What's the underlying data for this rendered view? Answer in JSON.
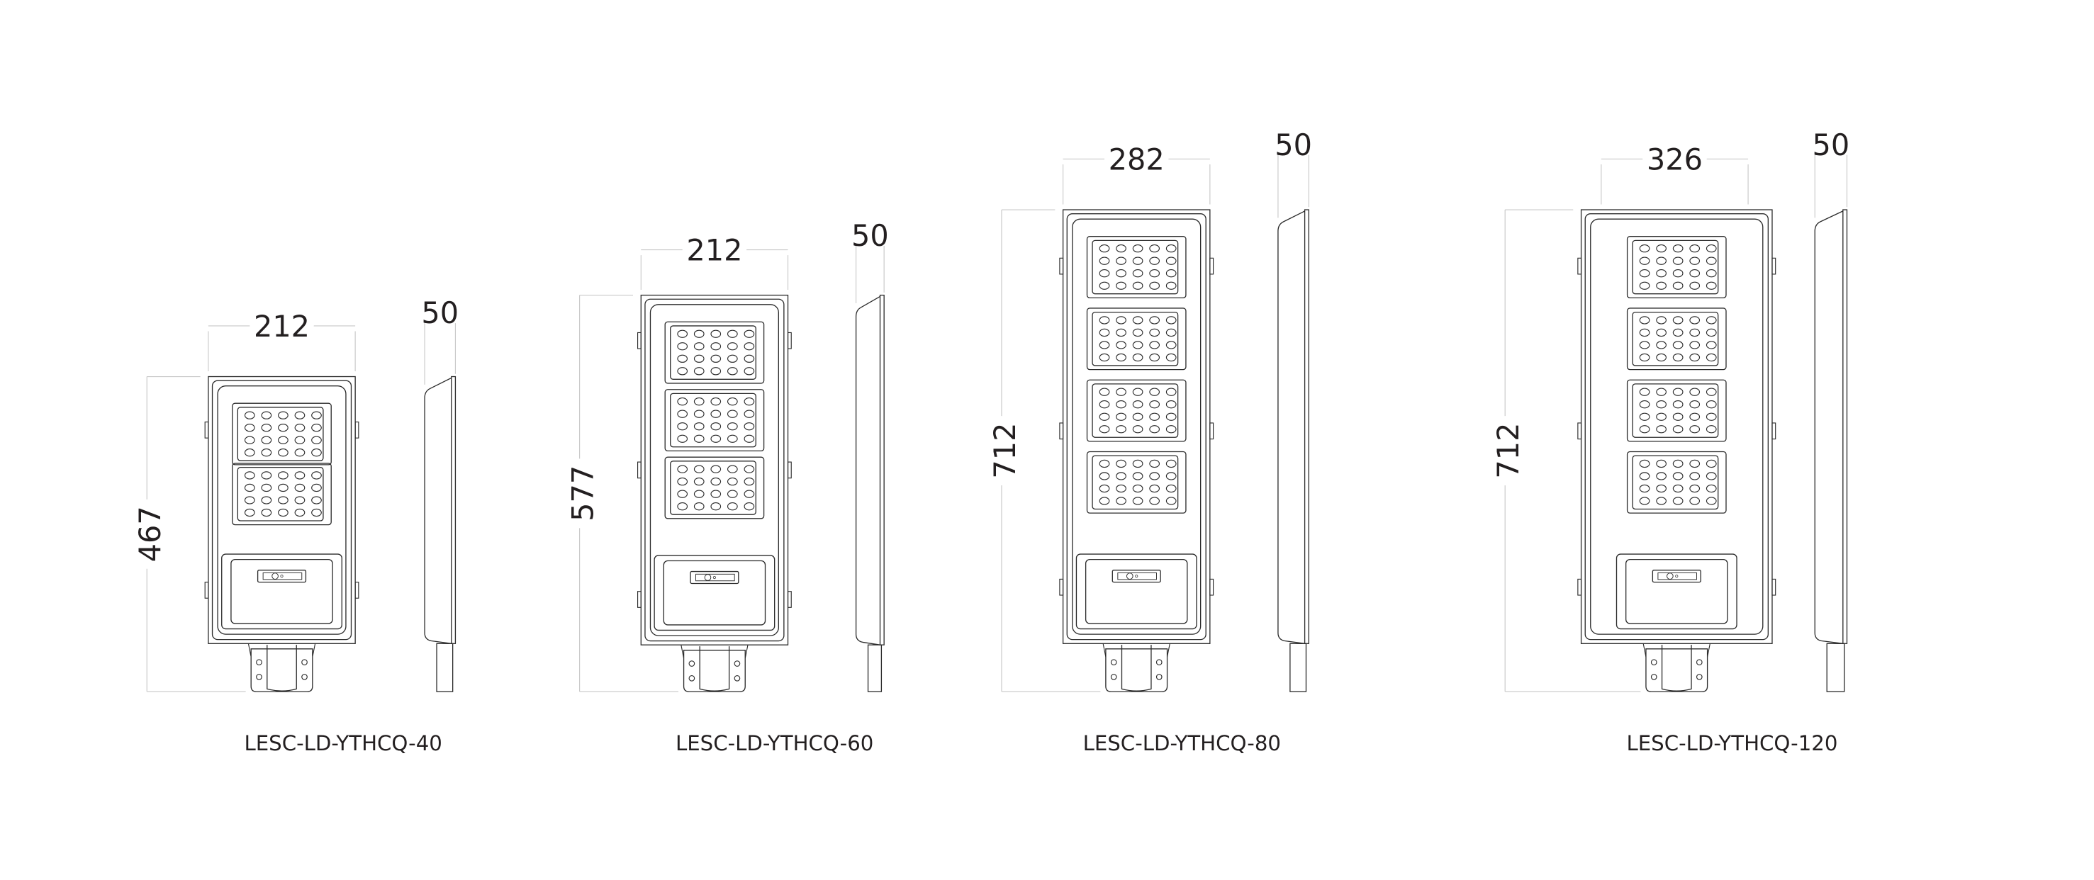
{
  "drawing": {
    "line_color": "#2b2b2b",
    "dimension_line_color": "#c8c8c8",
    "text_color": "#231f20",
    "models": [
      {
        "name": "LESC-LD-YTHCQ-40",
        "width": "212",
        "depth": "50",
        "height": "467",
        "led_modules": 2,
        "led_rows": 4,
        "led_cols": 5
      },
      {
        "name": "LESC-LD-YTHCQ-60",
        "width": "212",
        "depth": "50",
        "height": "577",
        "led_modules": 3,
        "led_rows": 4,
        "led_cols": 5
      },
      {
        "name": "LESC-LD-YTHCQ-80",
        "width": "282",
        "depth": "50",
        "height": "712",
        "led_modules": 4,
        "led_rows": 4,
        "led_cols": 5
      },
      {
        "name": "LESC-LD-YTHCQ-120",
        "width": "326",
        "depth": "50",
        "height": "712",
        "led_modules": 4,
        "led_rows": 4,
        "led_cols": 5
      }
    ]
  }
}
